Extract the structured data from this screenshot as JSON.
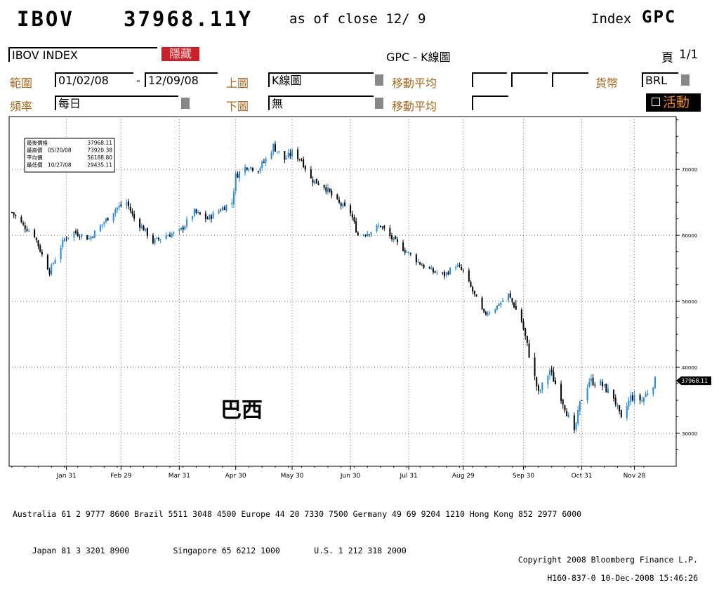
{
  "header": {
    "ticker": "IBOV",
    "price": "37968.11Y",
    "asof": "as of close 12/ 9",
    "index_label": "Index",
    "function": "GPC"
  },
  "toolbar": {
    "security": "IBOV INDEX",
    "hide_button": "隱藏",
    "center_title": "GPC - K線圖",
    "page_label": "頁",
    "page_value": "1/1",
    "range_label": "範圍",
    "range_start": "01/02/08",
    "range_dash": "-",
    "range_end": "12/09/08",
    "upper_chart_label": "上圖",
    "upper_chart_value": "K線圖",
    "ma_label_1": "移動平均",
    "currency_label": "貨幣",
    "currency_value": "BRL",
    "freq_label": "頻率",
    "freq_value": "每日",
    "lower_chart_label": "下圖",
    "lower_chart_value": "無",
    "ma_label_2": "移動平均",
    "activity_button": "活動"
  },
  "annotation": "巴西",
  "colors": {
    "up_candle": "#1e8ae6",
    "down_candle": "#000000",
    "label_orange": "#a8691c",
    "hide_red": "#c8232c",
    "activity_orange": "#f0891c"
  },
  "chart_data": {
    "type": "candlestick",
    "title": "GPC - K線圖",
    "ylim": [
      25000,
      78000
    ],
    "yticks": [
      30000,
      40000,
      50000,
      60000,
      70000
    ],
    "ytick_labels": [
      "30000",
      "40000",
      "50000",
      "60000",
      "70000"
    ],
    "current_value": 37968.11,
    "current_label": "37968.11",
    "x_tick_labels": [
      "Jan 31",
      "Feb 29",
      "Mar 31",
      "Apr 30",
      "May 30",
      "Jun 30",
      "Jul 31",
      "Aug 29",
      "Sep 30",
      "Oct 31",
      "Nov 28"
    ],
    "x_ticks": [
      "2008-01-31",
      "2008-02-29",
      "2008-03-31",
      "2008-04-30",
      "2008-05-30",
      "2008-06-30",
      "2008-07-31",
      "2008-08-29",
      "2008-09-30",
      "2008-10-31",
      "2008-11-28"
    ],
    "x_range": [
      "2008-01-02",
      "2008-12-09"
    ],
    "legend_rows": [
      {
        "label": "最後價格",
        "date": "",
        "value": "37968.11"
      },
      {
        "label": "最高價",
        "date": "05/20/08",
        "value": "73920.38"
      },
      {
        "label": "平均價",
        "date": "",
        "value": "56188.80"
      },
      {
        "label": "最低價",
        "date": "10/27/08",
        "value": "29435.11"
      }
    ],
    "close_path": [
      [
        "2008-01-02",
        63500
      ],
      [
        "2008-01-08",
        61500
      ],
      [
        "2008-01-14",
        60000
      ],
      [
        "2008-01-18",
        57000
      ],
      [
        "2008-01-22",
        54500
      ],
      [
        "2008-01-25",
        56500
      ],
      [
        "2008-01-30",
        59500
      ],
      [
        "2008-02-04",
        60500
      ],
      [
        "2008-02-12",
        59500
      ],
      [
        "2008-02-20",
        62000
      ],
      [
        "2008-02-26",
        64000
      ],
      [
        "2008-03-03",
        65000
      ],
      [
        "2008-03-07",
        62500
      ],
      [
        "2008-03-12",
        61000
      ],
      [
        "2008-03-17",
        59000
      ],
      [
        "2008-03-24",
        60000
      ],
      [
        "2008-03-31",
        60500
      ],
      [
        "2008-04-08",
        63500
      ],
      [
        "2008-04-15",
        62500
      ],
      [
        "2008-04-22",
        64000
      ],
      [
        "2008-04-28",
        65000
      ],
      [
        "2008-04-30",
        69000
      ],
      [
        "2008-05-06",
        70500
      ],
      [
        "2008-05-12",
        70000
      ],
      [
        "2008-05-16",
        71500
      ],
      [
        "2008-05-20",
        73500
      ],
      [
        "2008-05-26",
        71500
      ],
      [
        "2008-05-30",
        72500
      ],
      [
        "2008-06-04",
        71500
      ],
      [
        "2008-06-09",
        68500
      ],
      [
        "2008-06-16",
        67500
      ],
      [
        "2008-06-23",
        65000
      ],
      [
        "2008-06-30",
        63500
      ],
      [
        "2008-07-04",
        60000
      ],
      [
        "2008-07-10",
        60500
      ],
      [
        "2008-07-16",
        61500
      ],
      [
        "2008-07-22",
        59500
      ],
      [
        "2008-07-28",
        58000
      ],
      [
        "2008-08-01",
        57000
      ],
      [
        "2008-08-07",
        55500
      ],
      [
        "2008-08-13",
        54500
      ],
      [
        "2008-08-19",
        54000
      ],
      [
        "2008-08-25",
        55500
      ],
      [
        "2008-08-29",
        54500
      ],
      [
        "2008-09-03",
        51500
      ],
      [
        "2008-09-09",
        48000
      ],
      [
        "2008-09-15",
        49000
      ],
      [
        "2008-09-22",
        51000
      ],
      [
        "2008-09-29",
        47000
      ],
      [
        "2008-10-03",
        42000
      ],
      [
        "2008-10-08",
        36000
      ],
      [
        "2008-10-14",
        39500
      ],
      [
        "2008-10-20",
        35500
      ],
      [
        "2008-10-27",
        30000
      ],
      [
        "2008-10-30",
        34500
      ],
      [
        "2008-11-04",
        38000
      ],
      [
        "2008-11-10",
        37500
      ],
      [
        "2008-11-17",
        35500
      ],
      [
        "2008-11-21",
        32000
      ],
      [
        "2008-11-26",
        35500
      ],
      [
        "2008-12-02",
        35000
      ],
      [
        "2008-12-09",
        37968
      ]
    ]
  },
  "footer": {
    "line1": "Australia 61 2 9777 8600 Brazil 5511 3048 4500 Europe 44 20 7330 7500 Germany 49 69 9204 1210 Hong Kong 852 2977 6000",
    "line2_left": "Japan 81 3 3201 8900         Singapore 65 6212 1000       U.S. 1 212 318 2000",
    "line2_right": "Copyright 2008 Bloomberg Finance L.P.",
    "line3_right": "H160-837-0 10-Dec-2008 15:46:26"
  }
}
